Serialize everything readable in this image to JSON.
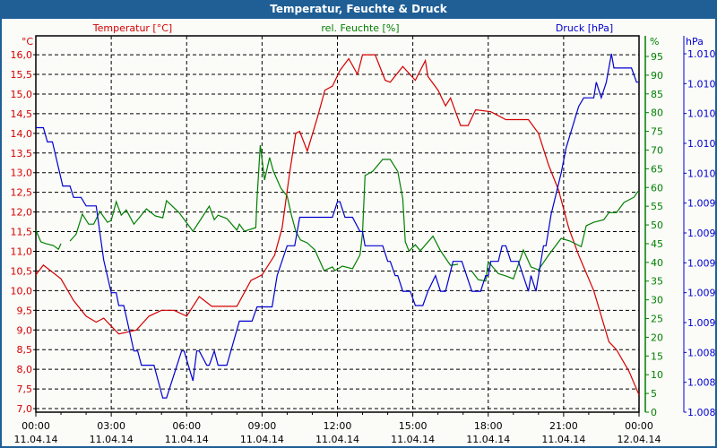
{
  "window": {
    "title": "Temperatur, Feuchte & Druck"
  },
  "colors": {
    "temperature": "#d40000",
    "humidity": "#008000",
    "pressure": "#0000d0",
    "titlebar": "#1f5f96"
  },
  "chart_data": {
    "type": "line",
    "title": "Temperatur, Feuchte & Druck",
    "legend": {
      "temperature": "Temperatur [°C]",
      "humidity": "rel. Feuchte [%]",
      "pressure": "Druck [hPa]"
    },
    "axes": {
      "left": {
        "unit": "°C",
        "range": [
          6.91,
          16.48
        ],
        "ticks": [
          "7,0",
          "7,5",
          "8,0",
          "8,5",
          "9,0",
          "9,5",
          "10,0",
          "10,5",
          "11,0",
          "11,5",
          "12,0",
          "12,5",
          "13,0",
          "13,5",
          "14,0",
          "14,5",
          "15,0",
          "15,5",
          "16,0"
        ]
      },
      "right1": {
        "unit": "%",
        "range": [
          0,
          100.5
        ],
        "ticks": [
          "0",
          "5",
          "10",
          "15",
          "20",
          "25",
          "30",
          "35",
          "40",
          "45",
          "50",
          "55",
          "60",
          "65",
          "70",
          "75",
          "80",
          "85",
          "90",
          "95"
        ]
      },
      "right2": {
        "unit": "hPa",
        "range": [
          1008.0,
          1010.52
        ],
        "ticks": [
          "1.008",
          "1.008",
          "1.008",
          "1.009",
          "1.009",
          "1.009",
          "1.009",
          "1.009",
          "1.010",
          "1.010",
          "1.010",
          "1.010",
          "1.010"
        ]
      },
      "x": {
        "range_hours": [
          0,
          24
        ],
        "ticks": [
          {
            "time": "00:00",
            "date": "11.04.14"
          },
          {
            "time": "03:00",
            "date": "11.04.14"
          },
          {
            "time": "06:00",
            "date": "11.04.14"
          },
          {
            "time": "09:00",
            "date": "11.04.14"
          },
          {
            "time": "12:00",
            "date": "11.04.14"
          },
          {
            "time": "15:00",
            "date": "11.04.14"
          },
          {
            "time": "18:00",
            "date": "11.04.14"
          },
          {
            "time": "21:00",
            "date": "11.04.14"
          },
          {
            "time": "00:00",
            "date": "12.04.14"
          }
        ]
      }
    },
    "grid": true,
    "series": [
      {
        "name": "Temperatur [°C]",
        "axis": "left",
        "key": "temperature",
        "points": [
          [
            0,
            10.4
          ],
          [
            0.3,
            10.65
          ],
          [
            1,
            10.3
          ],
          [
            1.5,
            9.75
          ],
          [
            2,
            9.35
          ],
          [
            2.4,
            9.2
          ],
          [
            2.7,
            9.3
          ],
          [
            3,
            9.1
          ],
          [
            3.3,
            8.9
          ],
          [
            4,
            9.0
          ],
          [
            4.5,
            9.35
          ],
          [
            5,
            9.5
          ],
          [
            5.5,
            9.5
          ],
          [
            6,
            9.35
          ],
          [
            6.5,
            9.85
          ],
          [
            7,
            9.6
          ],
          [
            7.5,
            9.6
          ],
          [
            8,
            9.6
          ],
          [
            8.56,
            10.26
          ],
          [
            9,
            10.4
          ],
          [
            9.5,
            10.9
          ],
          [
            9.8,
            11.6
          ],
          [
            10.1,
            13.0
          ],
          [
            10.34,
            14.0
          ],
          [
            10.5,
            14.05
          ],
          [
            10.8,
            13.55
          ],
          [
            11.2,
            14.4
          ],
          [
            11.5,
            15.1
          ],
          [
            11.8,
            15.2
          ],
          [
            12.1,
            15.6
          ],
          [
            12.45,
            15.9
          ],
          [
            12.8,
            15.5
          ],
          [
            13.0,
            16.0
          ],
          [
            13.5,
            16.0
          ],
          [
            13.9,
            15.35
          ],
          [
            14.1,
            15.3
          ],
          [
            14.6,
            15.7
          ],
          [
            15.1,
            15.35
          ],
          [
            15.5,
            15.85
          ],
          [
            15.6,
            15.45
          ],
          [
            16.0,
            15.1
          ],
          [
            16.3,
            14.7
          ],
          [
            16.5,
            14.9
          ],
          [
            16.9,
            14.2
          ],
          [
            17.2,
            14.2
          ],
          [
            17.5,
            14.6
          ],
          [
            18.1,
            14.55
          ],
          [
            18.7,
            14.35
          ],
          [
            19.6,
            14.35
          ],
          [
            20.0,
            14.0
          ],
          [
            20.4,
            13.2
          ],
          [
            20.8,
            12.55
          ],
          [
            21.2,
            11.6
          ],
          [
            21.6,
            10.9
          ],
          [
            22.2,
            10.0
          ],
          [
            22.8,
            8.7
          ],
          [
            23.1,
            8.5
          ],
          [
            23.6,
            7.95
          ],
          [
            24.0,
            7.35
          ]
        ]
      },
      {
        "name": "rel. Feuchte [%]",
        "axis": "right1",
        "key": "humidity",
        "points": [
          [
            0,
            48.6
          ],
          [
            0.2,
            45.5
          ],
          [
            0.4,
            45
          ],
          [
            0.7,
            44.5
          ],
          [
            0.9,
            43.5
          ],
          [
            1.0,
            45
          ],
          null,
          [
            1.36,
            45.7
          ],
          [
            1.6,
            47.5
          ],
          [
            1.85,
            52.9
          ],
          [
            2.1,
            50.2
          ],
          [
            2.3,
            50.2
          ],
          [
            2.55,
            53.6
          ],
          [
            2.85,
            50.7
          ],
          [
            3.0,
            51.2
          ],
          [
            3.2,
            56.2
          ],
          [
            3.4,
            52.6
          ],
          [
            3.6,
            54
          ],
          [
            3.9,
            50.2
          ],
          [
            4.4,
            54.3
          ],
          [
            4.75,
            52.4
          ],
          [
            5.05,
            51.9
          ],
          [
            5.2,
            56.5
          ],
          [
            5.7,
            53.3
          ],
          [
            6.25,
            48.3
          ],
          [
            6.65,
            52.4
          ],
          [
            6.9,
            55
          ],
          [
            7.1,
            51.4
          ],
          [
            7.25,
            52.6
          ],
          [
            7.6,
            51.7
          ],
          [
            8.0,
            48.6
          ],
          [
            8.1,
            50.2
          ],
          [
            8.3,
            48.3
          ],
          [
            8.75,
            49.3
          ],
          [
            8.8,
            57
          ],
          [
            8.93,
            71.3
          ],
          [
            9.1,
            62
          ],
          [
            9.3,
            68
          ],
          [
            9.45,
            64.4
          ],
          [
            9.75,
            59.8
          ],
          [
            10.0,
            57.7
          ],
          [
            10.17,
            52.6
          ],
          [
            10.34,
            48.3
          ],
          [
            10.53,
            46
          ],
          [
            10.8,
            45.2
          ],
          [
            11.1,
            43.3
          ],
          [
            11.47,
            37.8
          ],
          [
            11.8,
            38.8
          ],
          [
            11.9,
            37.8
          ],
          [
            12.2,
            39
          ],
          [
            12.6,
            38.3
          ],
          [
            12.9,
            42
          ],
          [
            13.0,
            47.8
          ],
          [
            13.1,
            63.2
          ],
          [
            13.4,
            64.3
          ],
          [
            13.8,
            67.5
          ],
          [
            14.1,
            67.5
          ],
          [
            14.4,
            64.3
          ],
          [
            14.6,
            57
          ],
          [
            14.7,
            45.5
          ],
          [
            14.85,
            43
          ],
          [
            15.1,
            44.7
          ],
          [
            15.3,
            43.1
          ],
          [
            15.8,
            47
          ],
          [
            16.1,
            43.1
          ],
          [
            16.5,
            39.2
          ],
          [
            16.8,
            39.5
          ],
          null,
          [
            17.35,
            37.6
          ],
          [
            17.6,
            35.4
          ],
          [
            17.9,
            35
          ],
          [
            18.0,
            40.2
          ],
          [
            18.4,
            37
          ],
          [
            18.7,
            36.4
          ],
          [
            19.0,
            35.6
          ],
          [
            19.4,
            43.3
          ],
          [
            19.7,
            38.8
          ],
          [
            20.0,
            38
          ],
          [
            20.4,
            41.9
          ],
          [
            20.9,
            46.4
          ],
          [
            21.25,
            45.7
          ],
          [
            21.7,
            44.2
          ],
          [
            21.9,
            49.8
          ],
          [
            22.2,
            50.7
          ],
          [
            22.6,
            51.4
          ],
          [
            22.8,
            53.3
          ],
          [
            23.1,
            53.3
          ],
          [
            23.4,
            56
          ],
          [
            23.8,
            57.4
          ],
          [
            23.95,
            58.9
          ],
          [
            24.0,
            58.6
          ]
        ]
      },
      {
        "name": "Druck [hPa]",
        "axis": "right2",
        "key": "pressure",
        "points": [
          [
            0,
            1010.0
          ],
          [
            0.3,
            1010.0
          ],
          [
            0.46,
            1009.9
          ],
          [
            0.66,
            1009.9
          ],
          [
            1.07,
            1009.59
          ],
          [
            1.36,
            1009.59
          ],
          [
            1.5,
            1009.51
          ],
          [
            1.8,
            1009.51
          ],
          [
            2.0,
            1009.45
          ],
          [
            2.4,
            1009.45
          ],
          [
            2.7,
            1009.07
          ],
          [
            3.0,
            1008.84
          ],
          [
            3.2,
            1008.84
          ],
          [
            3.3,
            1008.75
          ],
          [
            3.5,
            1008.75
          ],
          [
            3.9,
            1008.43
          ],
          [
            4.05,
            1008.43
          ],
          [
            4.2,
            1008.33
          ],
          [
            4.7,
            1008.33
          ],
          [
            5.05,
            1008.1
          ],
          [
            5.2,
            1008.1
          ],
          [
            5.8,
            1008.43
          ],
          [
            5.9,
            1008.43
          ],
          [
            6.25,
            1008.22
          ],
          [
            6.4,
            1008.43
          ],
          [
            6.5,
            1008.43
          ],
          [
            6.8,
            1008.33
          ],
          [
            6.9,
            1008.33
          ],
          [
            7.1,
            1008.43
          ],
          [
            7.25,
            1008.33
          ],
          [
            7.6,
            1008.33
          ],
          [
            8.1,
            1008.64
          ],
          [
            8.6,
            1008.64
          ],
          [
            8.8,
            1008.74
          ],
          [
            9.4,
            1008.74
          ],
          [
            9.6,
            1008.96
          ],
          [
            10.0,
            1009.17
          ],
          [
            10.3,
            1009.17
          ],
          [
            10.5,
            1009.37
          ],
          [
            11.8,
            1009.37
          ],
          [
            12.0,
            1009.48
          ],
          [
            12.1,
            1009.48
          ],
          [
            12.3,
            1009.37
          ],
          [
            12.6,
            1009.37
          ],
          [
            12.9,
            1009.27
          ],
          [
            13.0,
            1009.27
          ],
          [
            13.1,
            1009.17
          ],
          [
            13.8,
            1009.17
          ],
          [
            14.0,
            1009.06
          ],
          [
            14.1,
            1009.06
          ],
          [
            14.3,
            1008.96
          ],
          [
            14.4,
            1008.96
          ],
          [
            14.6,
            1008.85
          ],
          [
            14.9,
            1008.85
          ],
          [
            15.1,
            1008.75
          ],
          [
            15.4,
            1008.75
          ],
          [
            15.6,
            1008.85
          ],
          [
            15.9,
            1008.96
          ],
          [
            16.1,
            1008.85
          ],
          [
            16.3,
            1008.85
          ],
          [
            16.6,
            1009.06
          ],
          [
            16.95,
            1009.06
          ],
          [
            17.35,
            1008.85
          ],
          [
            17.7,
            1008.85
          ],
          [
            17.9,
            1008.96
          ],
          [
            18.0,
            1008.96
          ],
          [
            18.1,
            1009.06
          ],
          [
            18.4,
            1009.06
          ],
          [
            18.55,
            1009.17
          ],
          [
            18.7,
            1009.17
          ],
          [
            18.9,
            1009.06
          ],
          [
            19.2,
            1009.06
          ],
          [
            19.6,
            1008.85
          ],
          [
            19.7,
            1008.96
          ],
          [
            19.9,
            1008.85
          ],
          [
            20.2,
            1009.17
          ],
          [
            20.3,
            1009.17
          ],
          [
            20.5,
            1009.39
          ],
          [
            20.9,
            1009.68
          ],
          [
            21.1,
            1009.86
          ],
          [
            21.6,
            1010.15
          ],
          [
            21.8,
            1010.21
          ],
          [
            22.2,
            1010.21
          ],
          [
            22.3,
            1010.32
          ],
          [
            22.5,
            1010.21
          ],
          [
            22.7,
            1010.32
          ],
          [
            22.9,
            1010.52
          ],
          [
            23.0,
            1010.42
          ],
          [
            23.7,
            1010.42
          ],
          [
            23.9,
            1010.32
          ],
          [
            24.0,
            1010.32
          ]
        ]
      }
    ]
  }
}
